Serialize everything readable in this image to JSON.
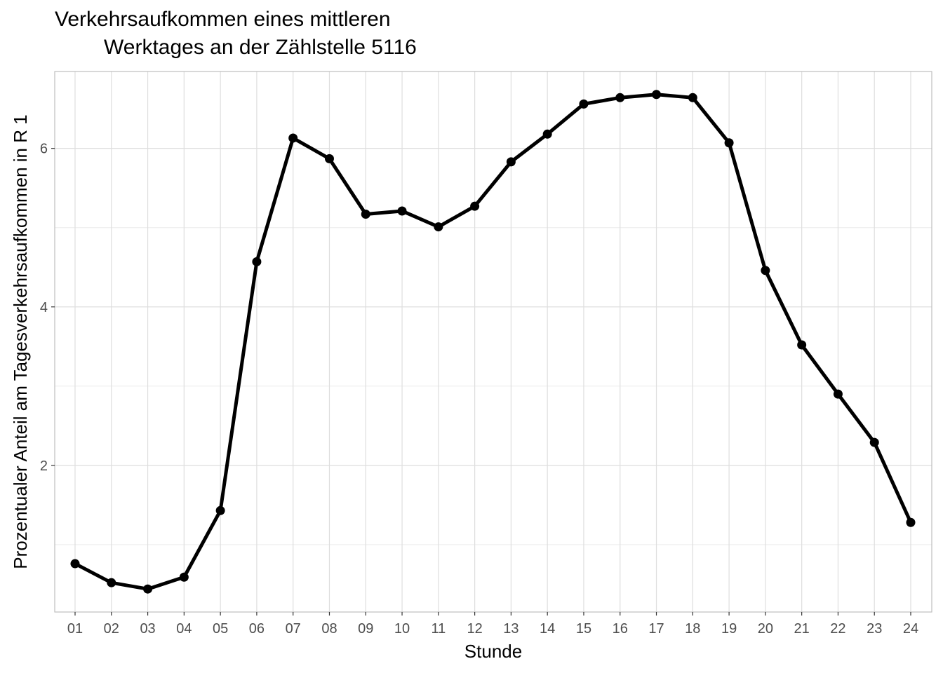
{
  "chart_data": {
    "type": "line",
    "title_line1": "Verkehrsaufkommen eines mittleren",
    "title_line2": "Werktages an der Zählstelle 5116",
    "xlabel": "Stunde",
    "ylabel": "Prozentualer Anteil am Tagesverkehrsaufkommen in R 1",
    "categories": [
      "01",
      "02",
      "03",
      "04",
      "05",
      "06",
      "07",
      "08",
      "09",
      "10",
      "11",
      "12",
      "13",
      "14",
      "15",
      "16",
      "17",
      "18",
      "19",
      "20",
      "21",
      "22",
      "23",
      "24"
    ],
    "values": [
      0.76,
      0.52,
      0.44,
      0.59,
      1.43,
      4.57,
      6.13,
      5.87,
      5.17,
      5.21,
      5.01,
      5.27,
      5.83,
      6.18,
      6.56,
      6.64,
      6.68,
      6.64,
      6.07,
      4.46,
      3.52,
      2.9,
      2.29,
      1.28
    ],
    "ylim": [
      0.15,
      6.97
    ],
    "yticks": [
      2,
      4,
      6
    ],
    "ytick_labels": [
      "2",
      "4",
      "6"
    ],
    "grid": true,
    "line_color": "#000000",
    "grid_color": "#dedede",
    "panel_border_color": "#bdbdbd"
  }
}
